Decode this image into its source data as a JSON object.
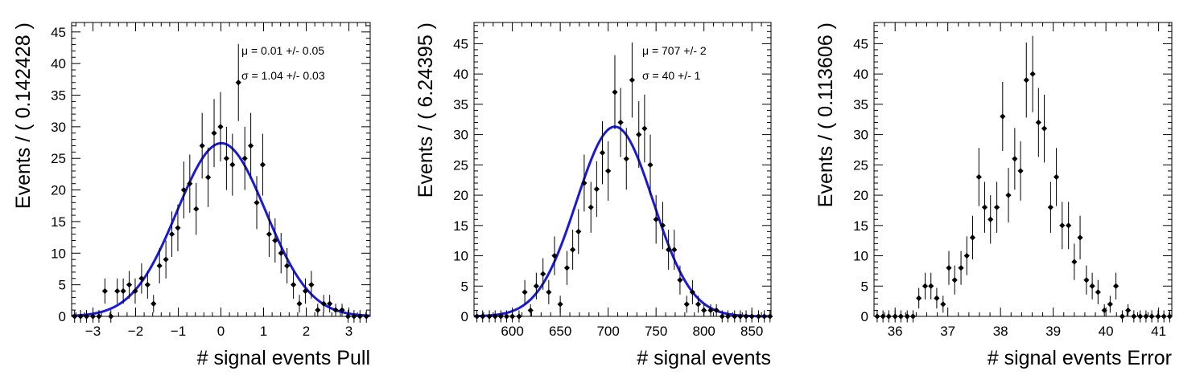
{
  "chart_data": [
    {
      "type": "scatter",
      "xlabel": "# signal events Pull",
      "ylabel": "Events / ( 0.142428 )",
      "xlim": [
        -3.5,
        3.5
      ],
      "ylim": [
        0,
        46.5
      ],
      "xticks": [
        -3,
        -2,
        -1,
        0,
        1,
        2,
        3
      ],
      "yticks": [
        0,
        5,
        10,
        15,
        20,
        25,
        30,
        35,
        40,
        45
      ],
      "annotations": [
        "μ =  0.01 +/- 0.05",
        "σ =  1.04 +/- 0.03"
      ],
      "fit": {
        "type": "gaussian",
        "mean": 0.01,
        "sigma": 1.04,
        "peak": 27.4,
        "color": "#1a1ad6"
      },
      "points": {
        "x": [
          -3.43,
          -3.29,
          -3.15,
          -3.0,
          -2.86,
          -2.72,
          -2.58,
          -2.43,
          -2.29,
          -2.15,
          -2.01,
          -1.86,
          -1.72,
          -1.58,
          -1.44,
          -1.29,
          -1.15,
          -1.01,
          -0.87,
          -0.73,
          -0.58,
          -0.44,
          -0.3,
          -0.16,
          -0.01,
          0.13,
          0.27,
          0.41,
          0.56,
          0.7,
          0.84,
          0.98,
          1.13,
          1.27,
          1.41,
          1.55,
          1.7,
          1.84,
          1.98,
          2.12,
          2.27,
          2.41,
          2.55,
          2.69,
          2.84,
          2.98,
          3.12,
          3.26,
          3.41
        ],
        "y": [
          0,
          0,
          0,
          0,
          0,
          4,
          0,
          4,
          4,
          5,
          4,
          6,
          5,
          2,
          8,
          9,
          13,
          14,
          20,
          21,
          17,
          27,
          22,
          29,
          30,
          25,
          24,
          37,
          25,
          27,
          18,
          24,
          13,
          12,
          10,
          8,
          5,
          2,
          4,
          5,
          1,
          2,
          2,
          1,
          1,
          0,
          0,
          0,
          0
        ],
        "yerr": [
          1,
          1,
          1,
          1,
          1,
          2,
          1,
          2,
          2,
          2.2,
          2,
          2.4,
          2.2,
          1.4,
          2.8,
          3,
          3.6,
          3.7,
          4.5,
          4.6,
          4.1,
          5.2,
          4.7,
          5.4,
          5.5,
          5,
          4.9,
          6.1,
          5,
          5.2,
          4.2,
          4.9,
          3.6,
          3.5,
          3.2,
          2.8,
          2.2,
          1.4,
          2,
          2.2,
          1,
          1.4,
          1.4,
          1,
          1,
          1,
          1,
          1,
          1
        ]
      }
    },
    {
      "type": "scatter",
      "xlabel": "# signal events",
      "ylabel": "Events / ( 6.24395 )",
      "xlim": [
        560,
        870
      ],
      "ylim": [
        0,
        48.5
      ],
      "xticks": [
        600,
        650,
        700,
        750,
        800,
        850
      ],
      "yticks": [
        0,
        5,
        10,
        15,
        20,
        25,
        30,
        35,
        40,
        45
      ],
      "annotations": [
        "μ =  707 +/- 2",
        "σ =  40 +/- 1"
      ],
      "fit": {
        "type": "gaussian",
        "mean": 707,
        "sigma": 40,
        "peak": 31.3,
        "color": "#1a1ad6"
      },
      "points": {
        "x": [
          563,
          569,
          576,
          582,
          588,
          594,
          600,
          607,
          613,
          619,
          625,
          632,
          638,
          644,
          650,
          657,
          663,
          669,
          675,
          682,
          688,
          694,
          700,
          707,
          713,
          719,
          725,
          732,
          738,
          744,
          750,
          757,
          763,
          769,
          775,
          782,
          788,
          794,
          800,
          807,
          813,
          819,
          825,
          832,
          838,
          844,
          850,
          857,
          863,
          869
        ],
        "y": [
          0,
          0,
          0,
          0,
          0,
          0,
          0,
          0,
          4,
          1,
          5,
          7,
          4,
          10,
          2,
          8,
          11,
          14,
          22,
          18,
          21,
          27,
          24,
          37,
          32,
          26,
          39,
          30,
          31,
          25,
          16,
          15,
          11,
          11,
          6,
          2,
          4,
          2,
          1,
          1,
          1,
          0,
          0,
          0,
          0,
          0,
          0,
          0,
          0,
          0
        ],
        "yerr": [
          1,
          1,
          1,
          1,
          1,
          1,
          1,
          1,
          2,
          1,
          2.2,
          2.6,
          2,
          3.2,
          1.4,
          2.8,
          3.3,
          3.7,
          4.7,
          4.2,
          4.6,
          5.2,
          4.9,
          6.1,
          5.7,
          5.1,
          6.2,
          5.5,
          5.6,
          5,
          4,
          3.9,
          3.3,
          3.3,
          2.4,
          1.4,
          2,
          1.4,
          1,
          1,
          1,
          1,
          1,
          1,
          1,
          1,
          1,
          1,
          1,
          1
        ]
      }
    },
    {
      "type": "scatter",
      "xlabel": "# signal events Error",
      "ylabel": "Events / ( 0.113606 )",
      "xlim": [
        35.6,
        41.25
      ],
      "ylim": [
        0,
        48.5
      ],
      "xticks": [
        36,
        37,
        38,
        39,
        40,
        41
      ],
      "yticks": [
        0,
        5,
        10,
        15,
        20,
        25,
        30,
        35,
        40,
        45
      ],
      "annotations": [],
      "points": {
        "x": [
          35.66,
          35.77,
          35.88,
          36.0,
          36.11,
          36.23,
          36.34,
          36.45,
          36.57,
          36.68,
          36.79,
          36.91,
          37.02,
          37.13,
          37.25,
          37.36,
          37.47,
          37.59,
          37.7,
          37.81,
          37.93,
          38.04,
          38.15,
          38.27,
          38.38,
          38.49,
          38.61,
          38.72,
          38.83,
          38.95,
          39.06,
          39.17,
          39.29,
          39.4,
          39.51,
          39.63,
          39.74,
          39.85,
          39.97,
          40.08,
          40.19,
          40.31,
          40.42,
          40.53,
          40.65,
          40.76,
          40.87,
          40.99,
          41.1,
          41.21
        ],
        "y": [
          0,
          0,
          0,
          0,
          0,
          0,
          0,
          3,
          5,
          5,
          3,
          2,
          8,
          6,
          8,
          10,
          13,
          23,
          18,
          16,
          18,
          33,
          20,
          26,
          24,
          39,
          40,
          32,
          31,
          18,
          23,
          15,
          15,
          9,
          13,
          6,
          5,
          4,
          1,
          2,
          5,
          0,
          1,
          0,
          0,
          0,
          0,
          0,
          0,
          0
        ],
        "yerr": [
          1,
          1,
          1,
          1,
          1,
          1,
          1,
          1.7,
          2.2,
          2.2,
          1.7,
          1.4,
          2.8,
          2.4,
          2.8,
          3.2,
          3.6,
          4.8,
          4.2,
          4,
          4.2,
          5.7,
          4.5,
          5.1,
          4.9,
          6.2,
          6.3,
          5.7,
          5.6,
          4.2,
          4.8,
          3.9,
          3.9,
          3,
          3.6,
          2.4,
          2.2,
          2,
          1,
          1.4,
          2.2,
          1,
          1,
          1,
          1,
          1,
          1,
          1,
          1,
          1
        ]
      }
    }
  ]
}
